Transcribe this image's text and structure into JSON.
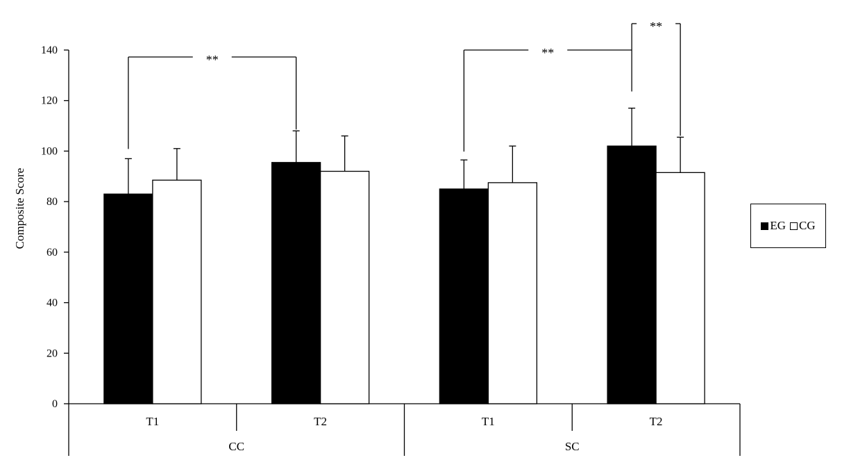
{
  "chart_data": {
    "type": "bar",
    "ylabel": "Composite Score",
    "xlabel": "",
    "ylim": [
      0,
      140
    ],
    "yticks": [
      0,
      20,
      40,
      60,
      80,
      100,
      120,
      140
    ],
    "groups": [
      {
        "label": "CC",
        "categories": [
          "T1",
          "T2"
        ]
      },
      {
        "label": "SC",
        "categories": [
          "T1",
          "T2"
        ]
      }
    ],
    "categories": [
      "CC T1",
      "CC T2",
      "SC T1",
      "SC T2"
    ],
    "series": [
      {
        "name": "EG",
        "color": "#000000",
        "values": [
          83,
          95.5,
          85,
          102
        ],
        "errors": [
          14,
          12.5,
          11.5,
          15
        ]
      },
      {
        "name": "CG",
        "color": "#ffffff",
        "values": [
          88.5,
          92,
          87.5,
          91.5
        ],
        "errors": [
          12.5,
          14,
          14.5,
          14
        ]
      }
    ],
    "significance": [
      {
        "label": "**",
        "from": "EG CC T1",
        "to": "EG CC T2"
      },
      {
        "label": "**",
        "from": "EG SC T1",
        "to": "EG SC T2"
      },
      {
        "label": "**",
        "from": "EG SC T2",
        "to": "CG SC T2"
      }
    ],
    "legend": {
      "position": "right",
      "items": [
        "EG",
        "CG"
      ]
    },
    "grid": false
  }
}
